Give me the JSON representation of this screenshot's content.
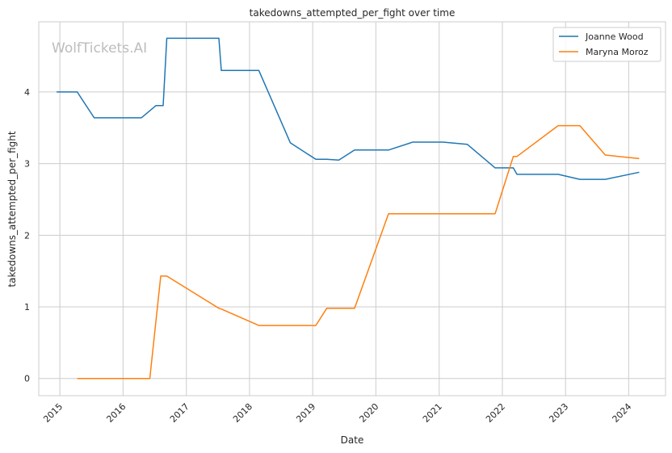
{
  "chart_data": {
    "type": "line",
    "title": "takedowns_attempted_per_fight over time",
    "xlabel": "Date",
    "ylabel": "takedowns_attempted_per_fight",
    "watermark": "WolfTickets.AI",
    "x_ticks": [
      "2015",
      "2016",
      "2017",
      "2018",
      "2019",
      "2020",
      "2021",
      "2022",
      "2023",
      "2024"
    ],
    "y_ticks": [
      "0",
      "1",
      "2",
      "3",
      "4"
    ],
    "xlim": [
      "2014-09-01",
      "2024-08-01"
    ],
    "ylim": [
      -0.24,
      4.98
    ],
    "grid": true,
    "legend_position": "top-right",
    "series": [
      {
        "name": "Joanne Wood",
        "color": "#1f77b4",
        "points": [
          [
            "2014-12-13",
            4.0
          ],
          [
            "2015-04-11",
            4.0
          ],
          [
            "2015-07-18",
            3.64
          ],
          [
            "2016-04-16",
            3.64
          ],
          [
            "2016-07-09",
            3.81
          ],
          [
            "2016-08-20",
            3.81
          ],
          [
            "2016-09-10",
            4.75
          ],
          [
            "2017-07-08",
            4.75
          ],
          [
            "2017-07-22",
            4.3
          ],
          [
            "2018-02-24",
            4.3
          ],
          [
            "2018-08-25",
            3.29
          ],
          [
            "2019-01-19",
            3.06
          ],
          [
            "2019-03-23",
            3.06
          ],
          [
            "2019-06-01",
            3.05
          ],
          [
            "2019-08-31",
            3.19
          ],
          [
            "2020-03-14",
            3.19
          ],
          [
            "2020-08-01",
            3.3
          ],
          [
            "2021-01-23",
            3.3
          ],
          [
            "2021-06-12",
            3.27
          ],
          [
            "2021-11-20",
            2.94
          ],
          [
            "2022-03-05",
            2.94
          ],
          [
            "2022-03-26",
            2.85
          ],
          [
            "2022-11-19",
            2.85
          ],
          [
            "2023-03-25",
            2.78
          ],
          [
            "2023-08-19",
            2.78
          ],
          [
            "2024-03-02",
            2.88
          ]
        ]
      },
      {
        "name": "Maryna Moroz",
        "color": "#ff7f0e",
        "points": [
          [
            "2015-04-11",
            0.0
          ],
          [
            "2016-06-04",
            0.0
          ],
          [
            "2016-08-06",
            1.43
          ],
          [
            "2016-09-10",
            1.43
          ],
          [
            "2017-07-08",
            0.98
          ],
          [
            "2017-07-22",
            0.97
          ],
          [
            "2018-02-24",
            0.74
          ],
          [
            "2019-01-19",
            0.74
          ],
          [
            "2019-03-23",
            0.98
          ],
          [
            "2019-08-31",
            0.98
          ],
          [
            "2020-03-14",
            2.3
          ],
          [
            "2021-11-20",
            2.3
          ],
          [
            "2022-03-05",
            3.1
          ],
          [
            "2022-03-26",
            3.1
          ],
          [
            "2022-11-19",
            3.53
          ],
          [
            "2023-03-25",
            3.53
          ],
          [
            "2023-08-19",
            3.12
          ],
          [
            "2024-03-02",
            3.07
          ]
        ]
      }
    ]
  }
}
